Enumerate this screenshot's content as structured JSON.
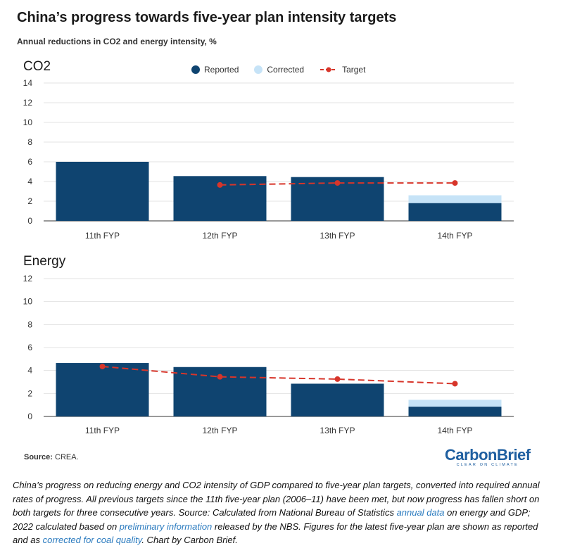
{
  "title": "China’s progress towards five-year plan intensity targets",
  "subtitle": "Annual reductions in CO2 and energy intensity, %",
  "legend": {
    "reported": "Reported",
    "corrected": "Corrected",
    "target": "Target"
  },
  "colors": {
    "reported": "#0f4470",
    "corrected": "#c6e3f7",
    "target": "#d7352a"
  },
  "chart_data": [
    {
      "type": "bar",
      "title": "CO2",
      "categories": [
        "11th FYP",
        "12th FYP",
        "13th FYP",
        "14th FYP"
      ],
      "ylim": [
        0,
        14
      ],
      "yticks": [
        0,
        2,
        4,
        6,
        8,
        10,
        12,
        14
      ],
      "grid": true,
      "series": [
        {
          "name": "Reported",
          "values": [
            6.0,
            4.55,
            4.45,
            1.8
          ]
        },
        {
          "name": "Corrected",
          "values": [
            null,
            null,
            null,
            2.6
          ]
        },
        {
          "name": "Target",
          "values": [
            null,
            3.65,
            3.85,
            3.85
          ]
        }
      ]
    },
    {
      "type": "bar",
      "title": "Energy",
      "categories": [
        "11th FYP",
        "12th FYP",
        "13th FYP",
        "14th FYP"
      ],
      "ylim": [
        0,
        12
      ],
      "yticks": [
        0,
        2,
        4,
        6,
        8,
        10,
        12
      ],
      "grid": true,
      "series": [
        {
          "name": "Reported",
          "values": [
            4.65,
            4.3,
            2.85,
            0.85
          ]
        },
        {
          "name": "Corrected",
          "values": [
            null,
            null,
            null,
            1.45
          ]
        },
        {
          "name": "Target",
          "values": [
            4.35,
            3.45,
            3.25,
            2.85
          ]
        }
      ]
    }
  ],
  "source": {
    "label": "Source:",
    "text": "CREA."
  },
  "logo": {
    "brand": "CarbonBrief",
    "tagline": "CLEAR ON CLIMATE"
  },
  "caption": {
    "part1": "China’s progress on reducing energy and CO2 intensity of GDP compared to five-year plan targets, converted into required annual rates of progress. All previous targets since the 11th five-year plan (2006–11) have been met, but now progress has fallen short on both targets for three consecutive years. Source: Calculated from National Bureau of Statistics ",
    "link1": "annual data",
    "part2": " on energy and GDP; 2022 calculated based on ",
    "link2": "preliminary information",
    "part3": " released by the NBS. Figures for the latest five-year plan are shown as reported and as ",
    "link3": "corrected for coal quality",
    "part4": ". Chart by Carbon Brief."
  }
}
